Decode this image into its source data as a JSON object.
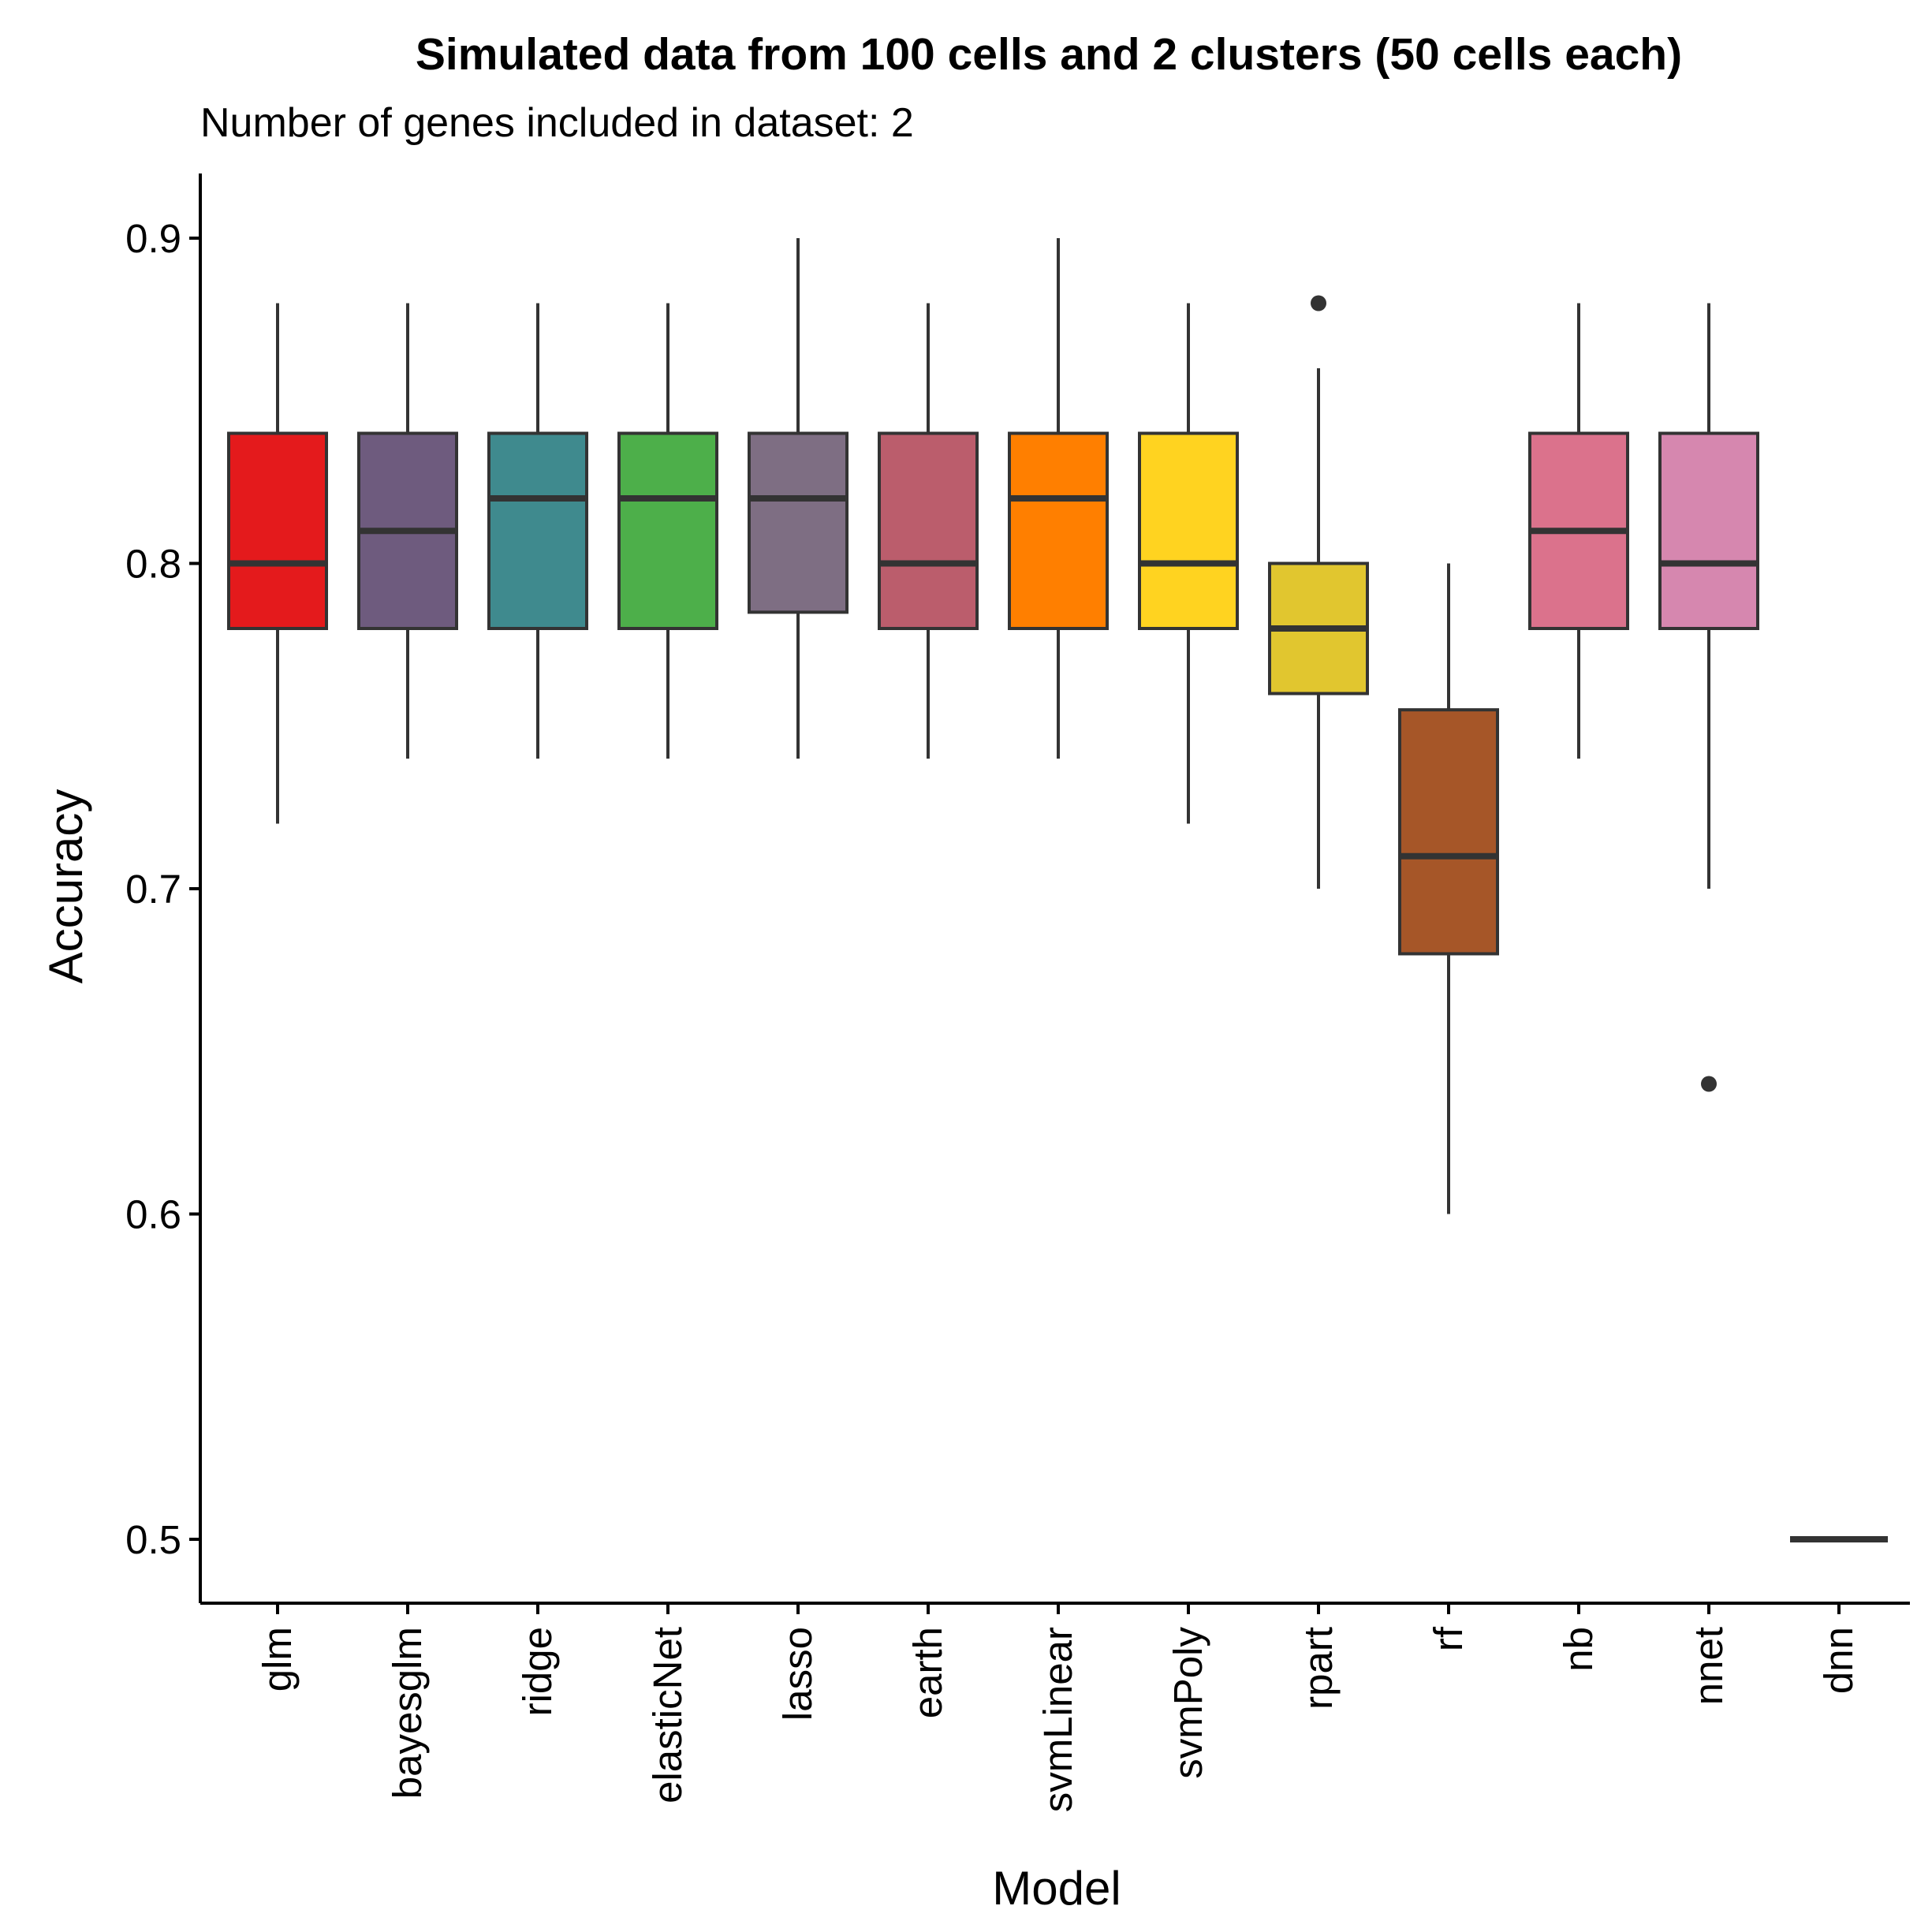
{
  "chart_data": {
    "type": "box",
    "title": "Simulated data from 100 cells and 2 clusters (50 cells each)",
    "subtitle": "Number of genes included in dataset: 2",
    "xlabel": "Model",
    "ylabel": "Accuracy",
    "ylim": [
      0.48,
      0.92
    ],
    "yticks": [
      "0.5",
      "0.6",
      "0.7",
      "0.8",
      "0.9"
    ],
    "grid": false,
    "legend": "none",
    "categories": [
      "glm",
      "bayesglm",
      "ridge",
      "elasticNet",
      "lasso",
      "earth",
      "svmLinear",
      "svmPoly",
      "rpart",
      "rf",
      "nb",
      "nnet",
      "dnn"
    ],
    "boxes": [
      {
        "name": "glm",
        "min": 0.72,
        "q1": 0.78,
        "median": 0.8,
        "q3": 0.84,
        "max": 0.88,
        "outliers": [],
        "color": "#E41A1C"
      },
      {
        "name": "bayesglm",
        "min": 0.74,
        "q1": 0.78,
        "median": 0.81,
        "q3": 0.84,
        "max": 0.88,
        "outliers": [],
        "color": "#6E5B7E"
      },
      {
        "name": "ridge",
        "min": 0.74,
        "q1": 0.78,
        "median": 0.82,
        "q3": 0.84,
        "max": 0.88,
        "outliers": [],
        "color": "#3F8A8E"
      },
      {
        "name": "elasticNet",
        "min": 0.74,
        "q1": 0.78,
        "median": 0.82,
        "q3": 0.84,
        "max": 0.88,
        "outliers": [],
        "color": "#4DAF4A"
      },
      {
        "name": "lasso",
        "min": 0.74,
        "q1": 0.785,
        "median": 0.82,
        "q3": 0.84,
        "max": 0.9,
        "outliers": [],
        "color": "#7E6E83"
      },
      {
        "name": "earth",
        "min": 0.74,
        "q1": 0.78,
        "median": 0.8,
        "q3": 0.84,
        "max": 0.88,
        "outliers": [],
        "color": "#BB5D6C"
      },
      {
        "name": "svmLinear",
        "min": 0.74,
        "q1": 0.78,
        "median": 0.82,
        "q3": 0.84,
        "max": 0.9,
        "outliers": [],
        "color": "#FF7F00"
      },
      {
        "name": "svmPoly",
        "min": 0.72,
        "q1": 0.78,
        "median": 0.8,
        "q3": 0.84,
        "max": 0.88,
        "outliers": [],
        "color": "#FFD320"
      },
      {
        "name": "rpart",
        "min": 0.7,
        "q1": 0.76,
        "median": 0.78,
        "q3": 0.8,
        "max": 0.86,
        "outliers": [
          0.88
        ],
        "color": "#E1C62F"
      },
      {
        "name": "rf",
        "min": 0.6,
        "q1": 0.68,
        "median": 0.71,
        "q3": 0.755,
        "max": 0.8,
        "outliers": [],
        "color": "#A65628"
      },
      {
        "name": "nb",
        "min": 0.74,
        "q1": 0.78,
        "median": 0.81,
        "q3": 0.84,
        "max": 0.88,
        "outliers": [],
        "color": "#DB728C"
      },
      {
        "name": "nnet",
        "min": 0.7,
        "q1": 0.78,
        "median": 0.8,
        "q3": 0.84,
        "max": 0.88,
        "outliers": [
          0.64
        ],
        "color": "#D687AF"
      },
      {
        "name": "dnn",
        "min": 0.5,
        "q1": 0.5,
        "median": 0.5,
        "q3": 0.5,
        "max": 0.5,
        "outliers": [],
        "color": "#999999"
      }
    ]
  }
}
